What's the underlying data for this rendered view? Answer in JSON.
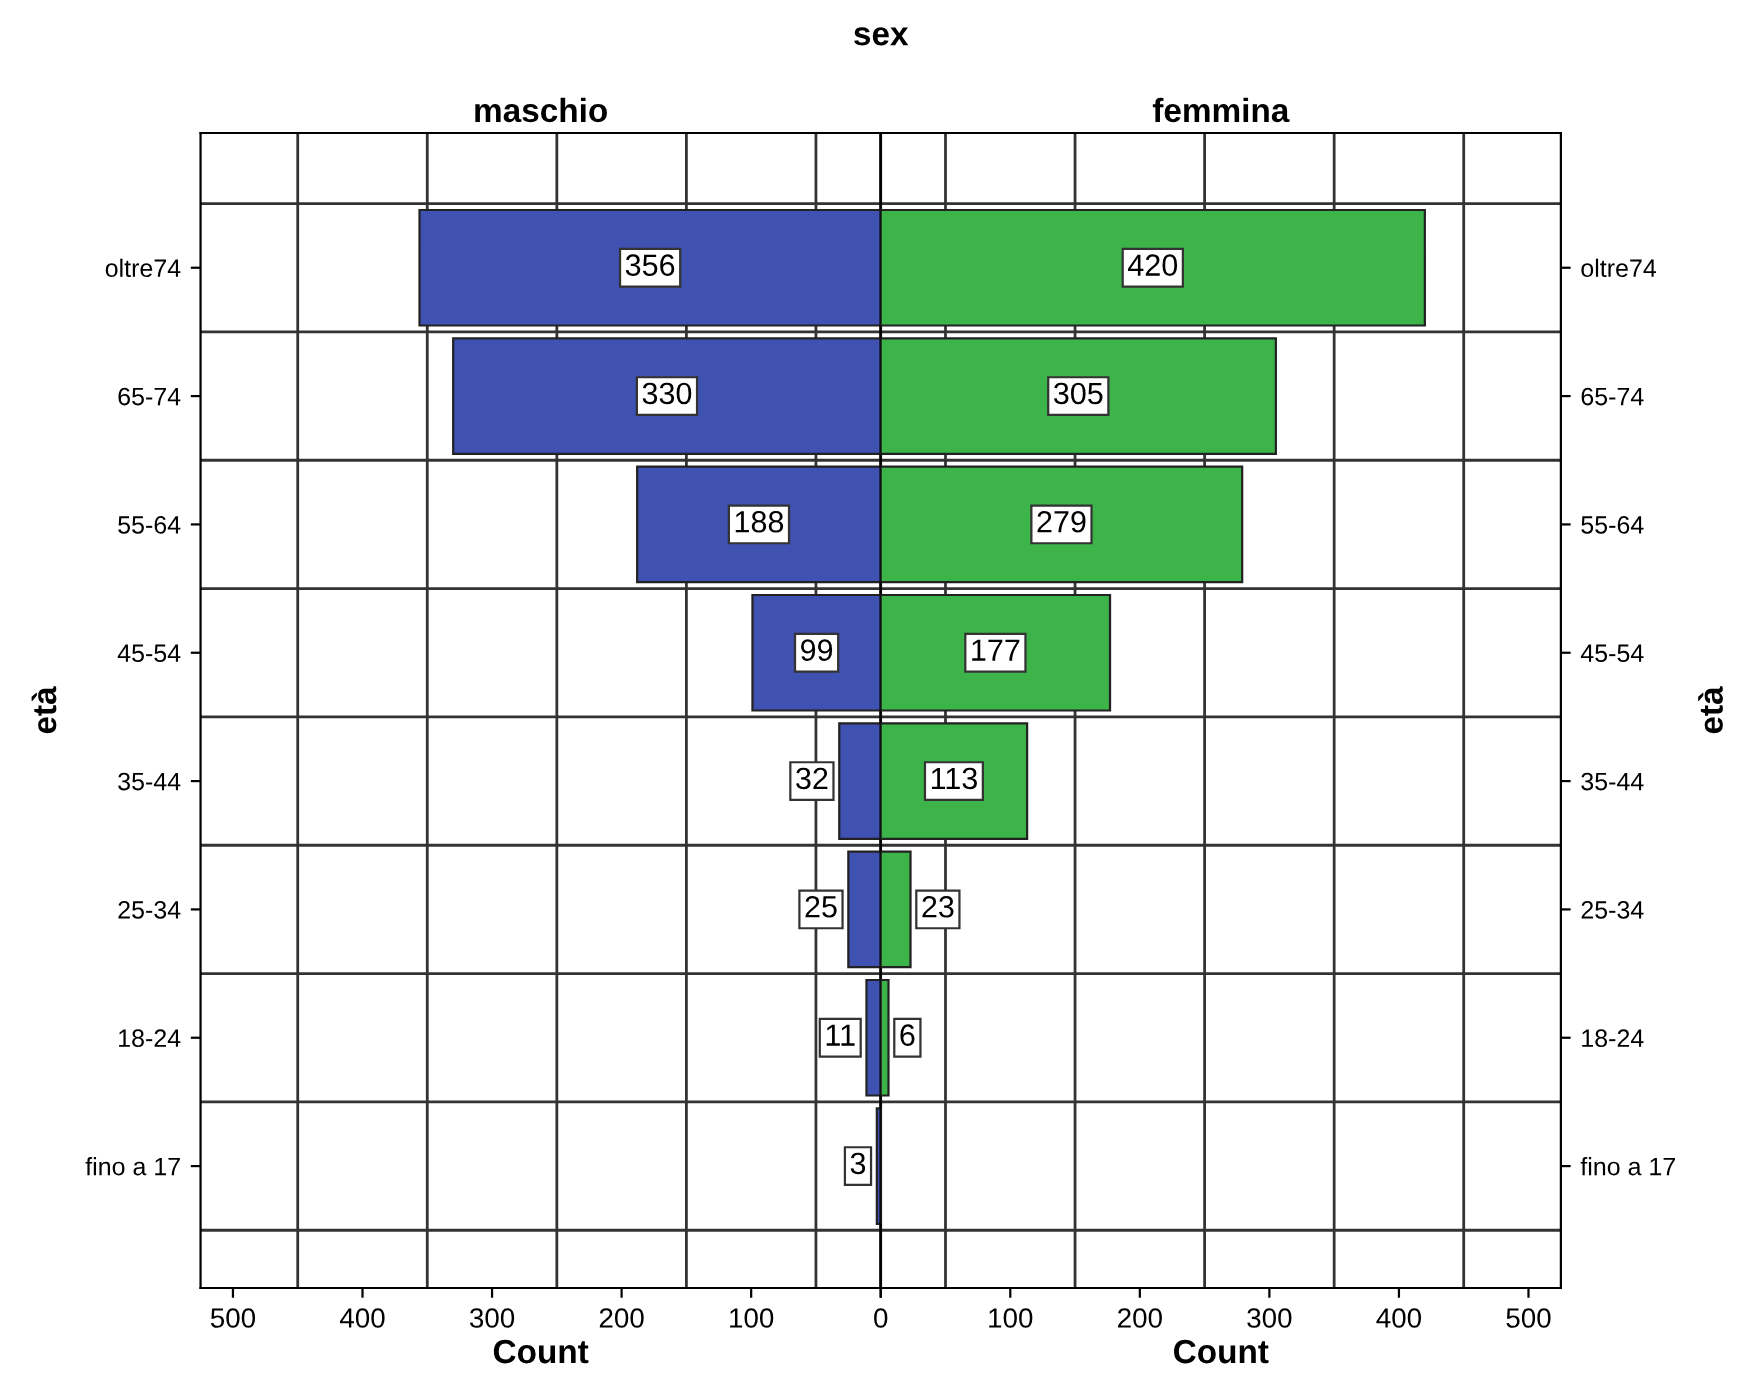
{
  "chart_data": [
    {
      "type": "bar",
      "orientation": "horizontal",
      "title": "maschio",
      "annotations": [
        "sex"
      ],
      "xlabel": "Count",
      "ylabel": "età",
      "categories": [
        "oltre74",
        "65-74",
        "55-64",
        "45-54",
        "35-44",
        "25-34",
        "18-24",
        "fino a 17"
      ],
      "values": [
        356,
        330,
        188,
        99,
        32,
        25,
        11,
        3
      ],
      "color": "#3f51b1",
      "xlim": [
        525,
        0
      ],
      "xticks": [
        500,
        400,
        300,
        200,
        100,
        0
      ],
      "grid": true,
      "data_labels": true
    },
    {
      "type": "bar",
      "orientation": "horizontal",
      "title": "femmina",
      "xlabel": "Count",
      "ylabel": "età",
      "categories": [
        "oltre74",
        "65-74",
        "55-64",
        "45-54",
        "35-44",
        "25-34",
        "18-24",
        "fino a 17"
      ],
      "values": [
        420,
        305,
        279,
        177,
        113,
        23,
        6,
        null
      ],
      "color": "#3cb44a",
      "xlim": [
        0,
        525
      ],
      "xticks": [
        {
          "value": 0,
          "label": null
        },
        100,
        200,
        300,
        400,
        500
      ],
      "grid": true,
      "data_labels": true
    }
  ]
}
